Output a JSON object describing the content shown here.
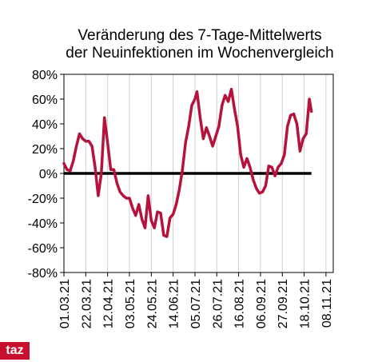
{
  "brand": {
    "logo_text": "taz",
    "color": "#c8102e"
  },
  "chart_data": {
    "type": "line",
    "title_lines": [
      "Veränderung des 7-Tage-Mittelwerts",
      "der Neuinfektionen im Wochenvergleich"
    ],
    "xlabel": "",
    "ylabel": "",
    "ylim": [
      -80,
      80
    ],
    "y_ticks": [
      80,
      60,
      40,
      20,
      0,
      -20,
      -40,
      -60,
      -80
    ],
    "y_tick_labels": [
      "80%",
      "60%",
      "40%",
      "20%",
      "0%",
      "-20%",
      "-40%",
      "-60%",
      "-80%"
    ],
    "x_tick_labels": [
      "01.03.21",
      "22.03.21",
      "12.04.21",
      "03.05.21",
      "24.05.21",
      "14.06.21",
      "05.07.21",
      "26.07.21",
      "16.08.21",
      "06.09.21",
      "27.09.21",
      "18.10.21",
      "08.11.21"
    ],
    "x_start": "2021-03-01",
    "x_end": "2021-11-15",
    "grid": "vertical",
    "reference_line": {
      "y": 0,
      "color": "#000000"
    },
    "series": [
      {
        "color": "#b5123c",
        "points": [
          [
            "2021-03-01",
            8
          ],
          [
            "2021-03-04",
            3
          ],
          [
            "2021-03-07",
            2
          ],
          [
            "2021-03-10",
            10
          ],
          [
            "2021-03-13",
            22
          ],
          [
            "2021-03-16",
            32
          ],
          [
            "2021-03-19",
            28
          ],
          [
            "2021-03-22",
            26
          ],
          [
            "2021-03-25",
            26
          ],
          [
            "2021-03-28",
            22
          ],
          [
            "2021-03-31",
            5
          ],
          [
            "2021-04-03",
            -18
          ],
          [
            "2021-04-06",
            0
          ],
          [
            "2021-04-09",
            45
          ],
          [
            "2021-04-12",
            25
          ],
          [
            "2021-04-15",
            3
          ],
          [
            "2021-04-18",
            3
          ],
          [
            "2021-04-21",
            -8
          ],
          [
            "2021-04-24",
            -15
          ],
          [
            "2021-04-27",
            -18
          ],
          [
            "2021-04-30",
            -20
          ],
          [
            "2021-05-03",
            -20
          ],
          [
            "2021-05-06",
            -28
          ],
          [
            "2021-05-09",
            -34
          ],
          [
            "2021-05-12",
            -25
          ],
          [
            "2021-05-15",
            -37
          ],
          [
            "2021-05-18",
            -44
          ],
          [
            "2021-05-21",
            -18
          ],
          [
            "2021-05-24",
            -38
          ],
          [
            "2021-05-27",
            -44
          ],
          [
            "2021-05-30",
            -31
          ],
          [
            "2021-06-02",
            -32
          ],
          [
            "2021-06-05",
            -50
          ],
          [
            "2021-06-08",
            -51
          ],
          [
            "2021-06-11",
            -36
          ],
          [
            "2021-06-14",
            -33
          ],
          [
            "2021-06-17",
            -25
          ],
          [
            "2021-06-20",
            -13
          ],
          [
            "2021-06-23",
            3
          ],
          [
            "2021-06-26",
            25
          ],
          [
            "2021-06-29",
            38
          ],
          [
            "2021-07-02",
            55
          ],
          [
            "2021-07-05",
            60
          ],
          [
            "2021-07-07",
            66
          ],
          [
            "2021-07-10",
            45
          ],
          [
            "2021-07-13",
            28
          ],
          [
            "2021-07-16",
            37
          ],
          [
            "2021-07-19",
            30
          ],
          [
            "2021-07-22",
            22
          ],
          [
            "2021-07-25",
            30
          ],
          [
            "2021-07-28",
            38
          ],
          [
            "2021-07-31",
            55
          ],
          [
            "2021-08-03",
            63
          ],
          [
            "2021-08-06",
            58
          ],
          [
            "2021-08-09",
            68
          ],
          [
            "2021-08-12",
            52
          ],
          [
            "2021-08-15",
            38
          ],
          [
            "2021-08-18",
            15
          ],
          [
            "2021-08-21",
            5
          ],
          [
            "2021-08-24",
            12
          ],
          [
            "2021-08-27",
            5
          ],
          [
            "2021-08-30",
            -5
          ],
          [
            "2021-09-02",
            -12
          ],
          [
            "2021-09-05",
            -16
          ],
          [
            "2021-09-08",
            -15
          ],
          [
            "2021-09-11",
            -10
          ],
          [
            "2021-09-14",
            6
          ],
          [
            "2021-09-17",
            5
          ],
          [
            "2021-09-20",
            -2
          ],
          [
            "2021-09-23",
            5
          ],
          [
            "2021-09-26",
            8
          ],
          [
            "2021-09-29",
            15
          ],
          [
            "2021-10-02",
            38
          ],
          [
            "2021-10-05",
            47
          ],
          [
            "2021-10-08",
            48
          ],
          [
            "2021-10-11",
            40
          ],
          [
            "2021-10-14",
            18
          ],
          [
            "2021-10-17",
            28
          ],
          [
            "2021-10-20",
            32
          ],
          [
            "2021-10-23",
            60
          ],
          [
            "2021-10-25",
            50
          ]
        ]
      }
    ]
  }
}
